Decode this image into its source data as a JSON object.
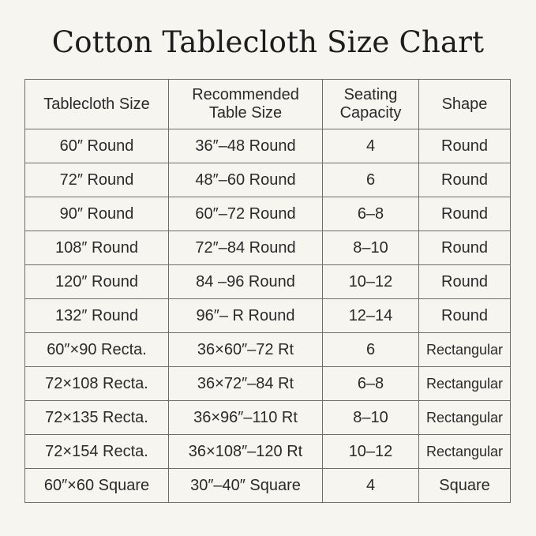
{
  "title": "Cotton Tablecloth Size Chart",
  "headers": [
    "Tablecloth Size",
    "Recommended Table Size",
    "Seating Capacity",
    "Shape"
  ],
  "rows": [
    [
      "60″ Round",
      "36″–48 Round",
      "4",
      "Round"
    ],
    [
      "72″ Round",
      "48″–60 Round",
      "6",
      "Round"
    ],
    [
      "90″ Round",
      "60″–72 Round",
      "6–8",
      "Round"
    ],
    [
      "108″ Round",
      "72″–84 Round",
      "8–10",
      "Round"
    ],
    [
      "120″ Round",
      "84 –96 Round",
      "10–12",
      "Round"
    ],
    [
      "132″ Round",
      "96″– R Round",
      "12–14",
      "Round"
    ],
    [
      "60″×90 Recta.",
      "36×60″–72 Rt",
      "6",
      "Rectangular"
    ],
    [
      "72×108 Recta.",
      "36×72″–84 Rt",
      "6–8",
      "Rectangular"
    ],
    [
      "72×135 Recta.",
      "36×96″–110  Rt",
      "8–10",
      "Rectangular"
    ],
    [
      "72×154 Recta.",
      "36×108″–120  Rt",
      "10–12",
      "Rectangular"
    ],
    [
      "60″×60 Square",
      "30″–40″ Square",
      "4",
      "Square"
    ]
  ]
}
